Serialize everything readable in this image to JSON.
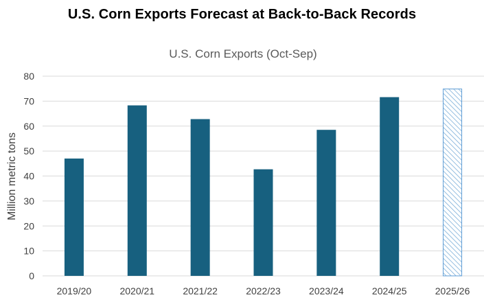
{
  "header": {
    "title": "U.S. Corn Exports Forecast at Back-to-Back Records"
  },
  "chart_data": {
    "type": "bar",
    "title": "U.S. Corn Exports (Oct-Sep)",
    "xlabel": "",
    "ylabel": "Million metric tons",
    "ylim": [
      0,
      80
    ],
    "yticks": [
      0,
      10,
      20,
      30,
      40,
      50,
      60,
      70,
      80
    ],
    "grid": true,
    "categories": [
      "2019/20",
      "2020/21",
      "2021/22",
      "2022/23",
      "2023/24",
      "2024/25",
      "2025/26"
    ],
    "values": [
      47,
      68.3,
      62.8,
      42.7,
      58.5,
      71.6,
      75
    ],
    "forecast_flags": [
      false,
      false,
      false,
      false,
      false,
      false,
      true
    ],
    "colors": {
      "bar": "#17607f",
      "forecast_outline": "#5b9bd5",
      "forecast_hatch": "#7aaed8",
      "grid": "#d9d9d9"
    }
  }
}
